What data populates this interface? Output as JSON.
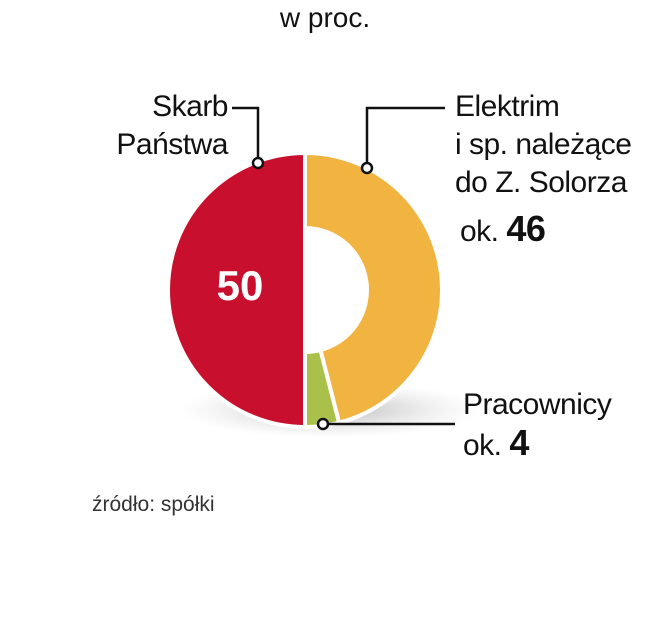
{
  "chart_data": {
    "type": "donut",
    "subtitle": "w proc.",
    "categories": [
      "Skarb\nPaństwa",
      "Elektrim\ni sp. należące\ndo Z. Solorza",
      "Pracownicy"
    ],
    "values": [
      50,
      46,
      4
    ],
    "value_labels": [
      "50",
      "ok. 46",
      "ok. 4"
    ],
    "colors": [
      "#c8102e",
      "#f2b441",
      "#a9c04a"
    ],
    "source": "źródło: spółki"
  }
}
